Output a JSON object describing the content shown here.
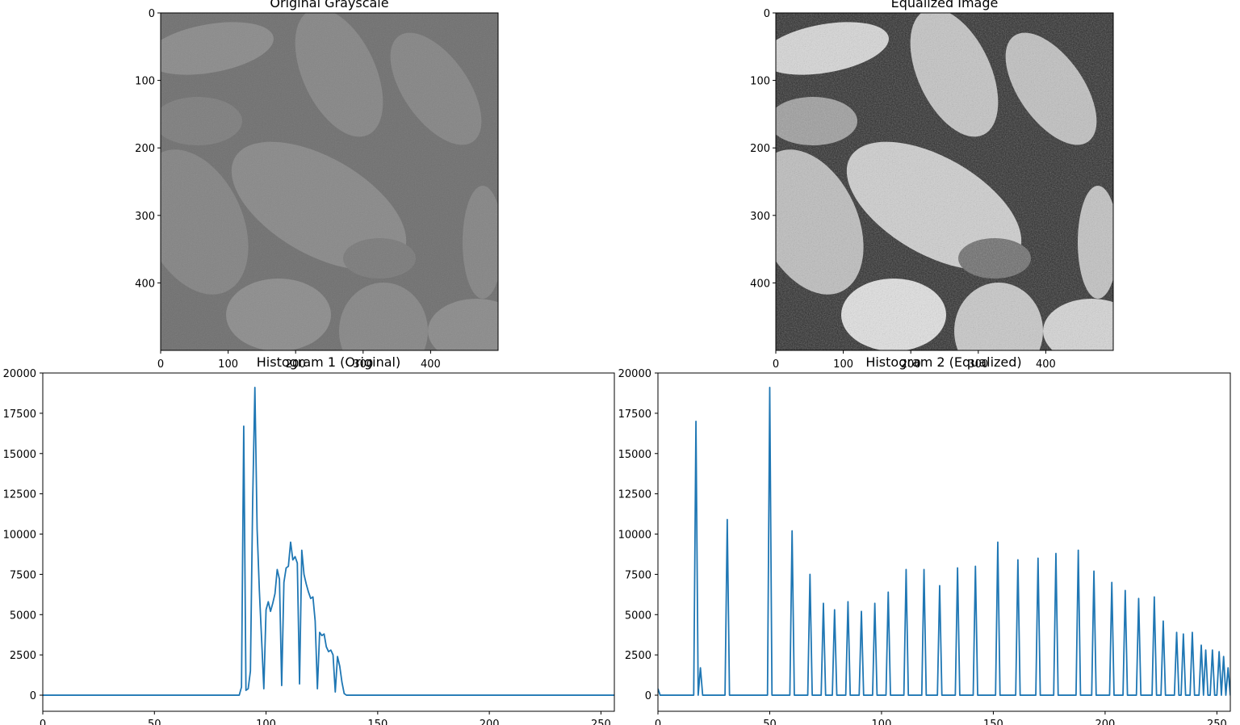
{
  "figure": {
    "image_panels": [
      {
        "title": "Original Grayscale",
        "rendering": "low-contrast grayscale micrograph of pollen grains",
        "tone": "#767676"
      },
      {
        "title": "Equalized Image",
        "rendering": "high-contrast grayscale micrograph of pollen grains",
        "tone": "#9a9a9a"
      }
    ]
  },
  "chart_data": [
    {
      "type": "image",
      "title": "Original Grayscale",
      "xlim": [
        0,
        500
      ],
      "ylim": [
        500,
        0
      ],
      "xticks": [
        "0",
        "100",
        "200",
        "300",
        "400"
      ],
      "yticks": [
        "0",
        "100",
        "200",
        "300",
        "400"
      ]
    },
    {
      "type": "image",
      "title": "Equalized Image",
      "xlim": [
        0,
        500
      ],
      "ylim": [
        500,
        0
      ],
      "xticks": [
        "0",
        "100",
        "200",
        "300",
        "400"
      ],
      "yticks": [
        "0",
        "100",
        "200",
        "300",
        "400"
      ]
    },
    {
      "type": "line",
      "title": "Histogram 1 (Original)",
      "color": "#1f77b4",
      "xlim": [
        0,
        256
      ],
      "ylim": [
        -1000,
        20000
      ],
      "xticks": [
        "0",
        "50",
        "100",
        "150",
        "200",
        "250"
      ],
      "yticks": [
        "0",
        "2500",
        "5000",
        "7500",
        "10000",
        "12500",
        "15000",
        "17500",
        "20000"
      ],
      "grid": false,
      "x": [
        0,
        88,
        89,
        90,
        91,
        92,
        93,
        94,
        95,
        96,
        97,
        98,
        99,
        100,
        101,
        102,
        103,
        104,
        105,
        106,
        107,
        108,
        109,
        110,
        111,
        112,
        113,
        114,
        115,
        116,
        117,
        118,
        119,
        120,
        121,
        122,
        123,
        124,
        125,
        126,
        127,
        128,
        129,
        130,
        131,
        132,
        133,
        134,
        135,
        136,
        137,
        256
      ],
      "y": [
        0,
        0,
        500,
        16700,
        300,
        400,
        1500,
        12000,
        19100,
        10300,
        6500,
        3500,
        400,
        5300,
        5800,
        5200,
        5700,
        6300,
        7800,
        7200,
        600,
        7000,
        7900,
        8000,
        9500,
        8400,
        8600,
        8200,
        700,
        9000,
        7500,
        6900,
        6400,
        6000,
        6100,
        4600,
        400,
        3900,
        3700,
        3800,
        3000,
        2700,
        2800,
        2500,
        200,
        2400,
        1800,
        800,
        100,
        0,
        0,
        0
      ]
    },
    {
      "type": "line",
      "title": "Histogram 2 (Equalized)",
      "color": "#1f77b4",
      "xlim": [
        0,
        256
      ],
      "ylim": [
        -1000,
        20000
      ],
      "xticks": [
        "0",
        "50",
        "100",
        "150",
        "200",
        "250"
      ],
      "yticks": [
        "0",
        "2500",
        "5000",
        "7500",
        "10000",
        "12500",
        "15000",
        "17500",
        "20000"
      ],
      "grid": false,
      "peaks": [
        {
          "x": 17,
          "y": 17000
        },
        {
          "x": 19,
          "y": 1700
        },
        {
          "x": 31,
          "y": 10900
        },
        {
          "x": 50,
          "y": 19100
        },
        {
          "x": 60,
          "y": 10200
        },
        {
          "x": 68,
          "y": 7500
        },
        {
          "x": 74,
          "y": 5700
        },
        {
          "x": 79,
          "y": 5300
        },
        {
          "x": 85,
          "y": 5800
        },
        {
          "x": 91,
          "y": 5200
        },
        {
          "x": 97,
          "y": 5700
        },
        {
          "x": 103,
          "y": 6400
        },
        {
          "x": 111,
          "y": 7800
        },
        {
          "x": 119,
          "y": 7800
        },
        {
          "x": 126,
          "y": 6800
        },
        {
          "x": 134,
          "y": 7900
        },
        {
          "x": 142,
          "y": 8000
        },
        {
          "x": 152,
          "y": 9500
        },
        {
          "x": 161,
          "y": 8400
        },
        {
          "x": 170,
          "y": 8500
        },
        {
          "x": 178,
          "y": 8800
        },
        {
          "x": 188,
          "y": 9000
        },
        {
          "x": 195,
          "y": 7700
        },
        {
          "x": 203,
          "y": 7000
        },
        {
          "x": 209,
          "y": 6500
        },
        {
          "x": 215,
          "y": 6000
        },
        {
          "x": 222,
          "y": 6100
        },
        {
          "x": 226,
          "y": 4600
        },
        {
          "x": 232,
          "y": 3900
        },
        {
          "x": 235,
          "y": 3800
        },
        {
          "x": 239,
          "y": 3900
        },
        {
          "x": 243,
          "y": 3100
        },
        {
          "x": 245,
          "y": 2800
        },
        {
          "x": 248,
          "y": 2800
        },
        {
          "x": 251,
          "y": 2700
        },
        {
          "x": 253,
          "y": 2400
        },
        {
          "x": 255,
          "y": 1700
        }
      ],
      "baseline": 0,
      "start": {
        "x": 0,
        "y": 400
      }
    }
  ]
}
